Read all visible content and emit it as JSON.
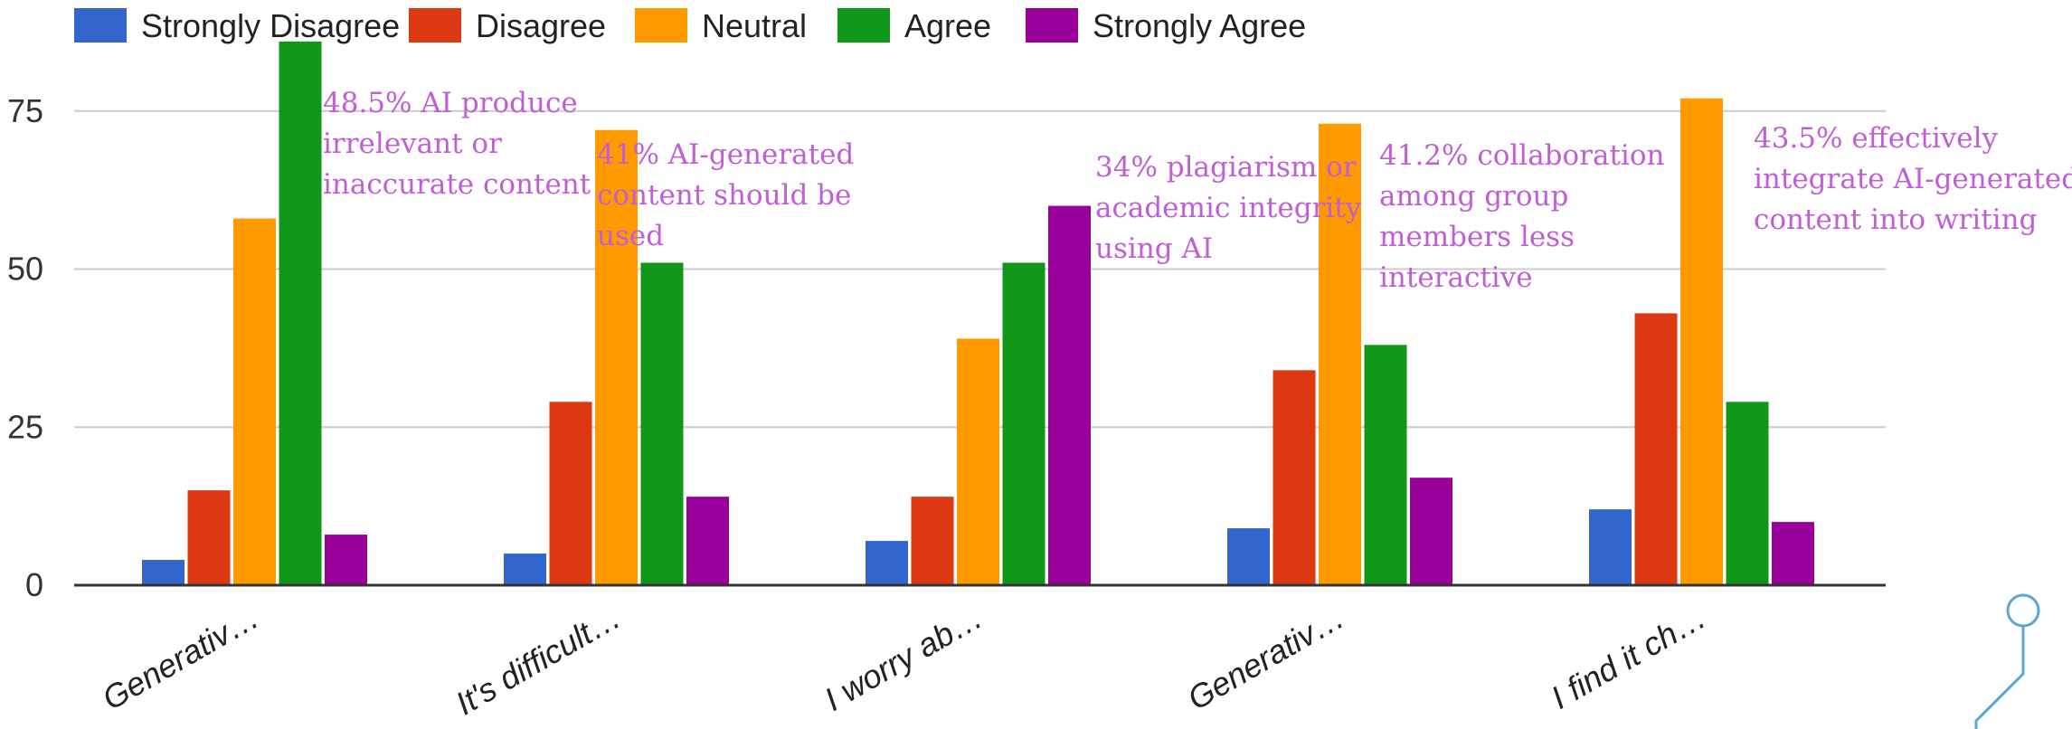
{
  "chart_data": {
    "type": "bar",
    "categories": [
      "Generativ…",
      "It's difficult…",
      "I worry ab…",
      "Generativ…",
      "I find it ch…"
    ],
    "series": [
      {
        "name": "Strongly Disagree",
        "color": "#3366cc",
        "values": [
          4,
          5,
          7,
          9,
          12
        ]
      },
      {
        "name": "Disagree",
        "color": "#dc3912",
        "values": [
          15,
          29,
          14,
          34,
          43
        ]
      },
      {
        "name": "Neutral",
        "color": "#ff9900",
        "values": [
          58,
          72,
          39,
          73,
          77
        ]
      },
      {
        "name": "Agree",
        "color": "#109618",
        "values": [
          86,
          51,
          51,
          38,
          29
        ]
      },
      {
        "name": "Strongly Agree",
        "color": "#990099",
        "values": [
          8,
          14,
          60,
          17,
          10
        ]
      }
    ],
    "yticks": [
      0,
      25,
      50,
      75
    ],
    "ylim": [
      0,
      86
    ],
    "grid": true,
    "legend_position": "top",
    "annotations": [
      {
        "lines": [
          "48.5% AI produce",
          "irrelevant or",
          "inaccurate content"
        ]
      },
      {
        "lines": [
          " 41% AI-generated",
          "content should be",
          "used"
        ]
      },
      {
        "lines": [
          "34% plagiarism or",
          "academic integrity",
          "using AI"
        ]
      },
      {
        "lines": [
          "41.2% collaboration",
          "among group",
          "members less",
          "interactive"
        ]
      },
      {
        "lines": [
          "43.5% effectively",
          "integrate AI-generated",
          "content into  writing"
        ]
      }
    ],
    "annotation_color": "#c15ed6"
  }
}
